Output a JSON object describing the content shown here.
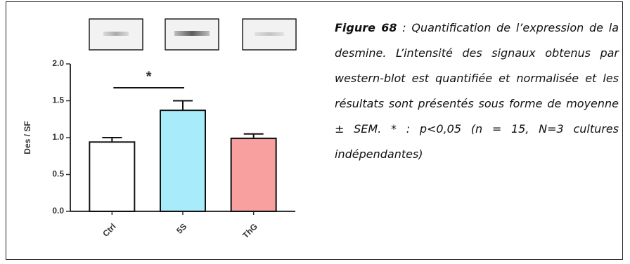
{
  "chart_data": {
    "type": "bar",
    "y_label": "Des / SF",
    "categories": [
      "Ctrl",
      "5S",
      "ThG"
    ],
    "values": [
      0.94,
      1.37,
      0.99
    ],
    "errors": [
      0.06,
      0.13,
      0.06
    ],
    "colors": [
      "#ffffff",
      "#a8ecfc",
      "#f8a0a0"
    ],
    "ylim": [
      0,
      2
    ],
    "yticks": [
      {
        "value": 0,
        "label": "0.0"
      },
      0.5,
      {
        "value": 1,
        "label": "1.0"
      },
      1.5,
      {
        "value": 2,
        "label": "2.0"
      }
    ],
    "annotation": "*"
  },
  "caption": {
    "label": "Figure 68",
    "text": " :  Quantification de l’expression de la desmine. L’intensité des signaux obtenus par western-blot est quantifiée et normalisée et les résultats sont présentés sous forme de moyenne ± SEM.   * : p<0,05 (n = 15, N=3 cultures indépendantes)"
  }
}
